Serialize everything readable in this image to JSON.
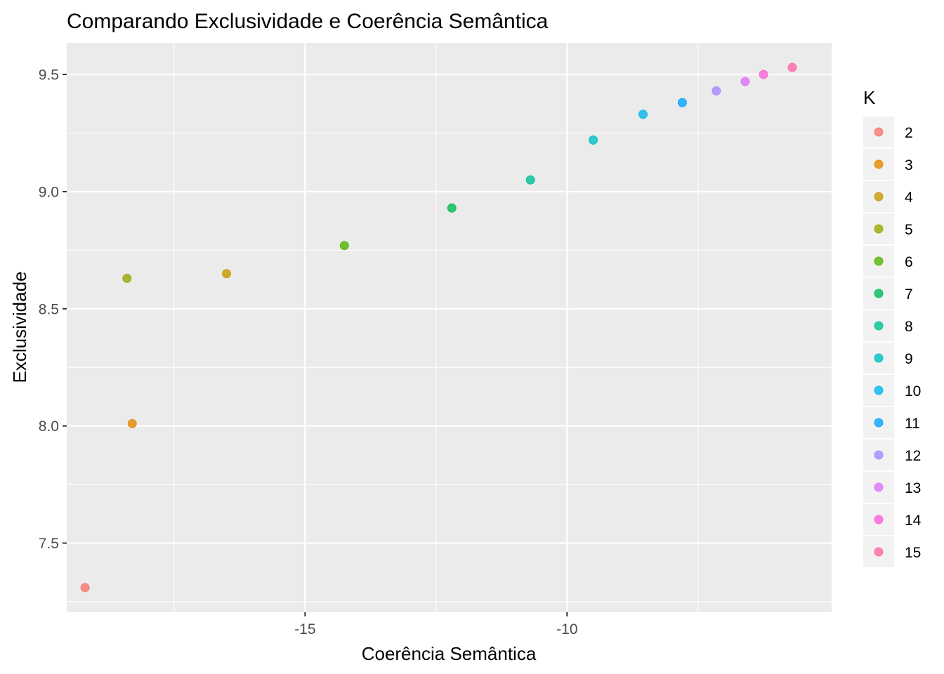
{
  "chart_data": {
    "type": "scatter",
    "title": "Comparando Exclusividade e Coerência Semântica",
    "xlabel": "Coerência Semântica",
    "ylabel": "Exclusividade",
    "xlim": [
      -19.55,
      -4.95
    ],
    "ylim": [
      7.205,
      9.635
    ],
    "x_ticks": [
      -15,
      -10
    ],
    "x_tick_labels": [
      "-15",
      "-10"
    ],
    "x_minor_ticks": [
      -17.5,
      -12.5,
      -7.5
    ],
    "y_ticks": [
      7.5,
      8.0,
      8.5,
      9.0,
      9.5
    ],
    "y_tick_labels": [
      "7.5",
      "8.0",
      "8.5",
      "9.0",
      "9.5"
    ],
    "y_minor_ticks": [
      7.25,
      7.75,
      8.25,
      8.75,
      9.25
    ],
    "grid": true,
    "legend": {
      "title": "K",
      "position": "right"
    },
    "series": [
      {
        "name": "2",
        "x": -19.2,
        "y": 7.31,
        "color": "#F8766D"
      },
      {
        "name": "3",
        "x": -18.3,
        "y": 8.01,
        "color": "#E38900"
      },
      {
        "name": "4",
        "x": -16.5,
        "y": 8.65,
        "color": "#C49A00"
      },
      {
        "name": "5",
        "x": -18.4,
        "y": 8.63,
        "color": "#99A800"
      },
      {
        "name": "6",
        "x": -14.25,
        "y": 8.77,
        "color": "#53B400"
      },
      {
        "name": "7",
        "x": -12.2,
        "y": 8.93,
        "color": "#00BC56"
      },
      {
        "name": "8",
        "x": -10.7,
        "y": 9.05,
        "color": "#00C094"
      },
      {
        "name": "9",
        "x": -9.5,
        "y": 9.22,
        "color": "#00BFC4"
      },
      {
        "name": "10",
        "x": -8.55,
        "y": 9.33,
        "color": "#00B6EB"
      },
      {
        "name": "11",
        "x": -7.8,
        "y": 9.38,
        "color": "#06A4FF"
      },
      {
        "name": "12",
        "x": -7.15,
        "y": 9.43,
        "color": "#A58AFF"
      },
      {
        "name": "13",
        "x": -6.6,
        "y": 9.47,
        "color": "#DF70F8"
      },
      {
        "name": "14",
        "x": -6.25,
        "y": 9.5,
        "color": "#FB61D7"
      },
      {
        "name": "15",
        "x": -5.7,
        "y": 9.53,
        "color": "#FF66A8"
      }
    ]
  }
}
